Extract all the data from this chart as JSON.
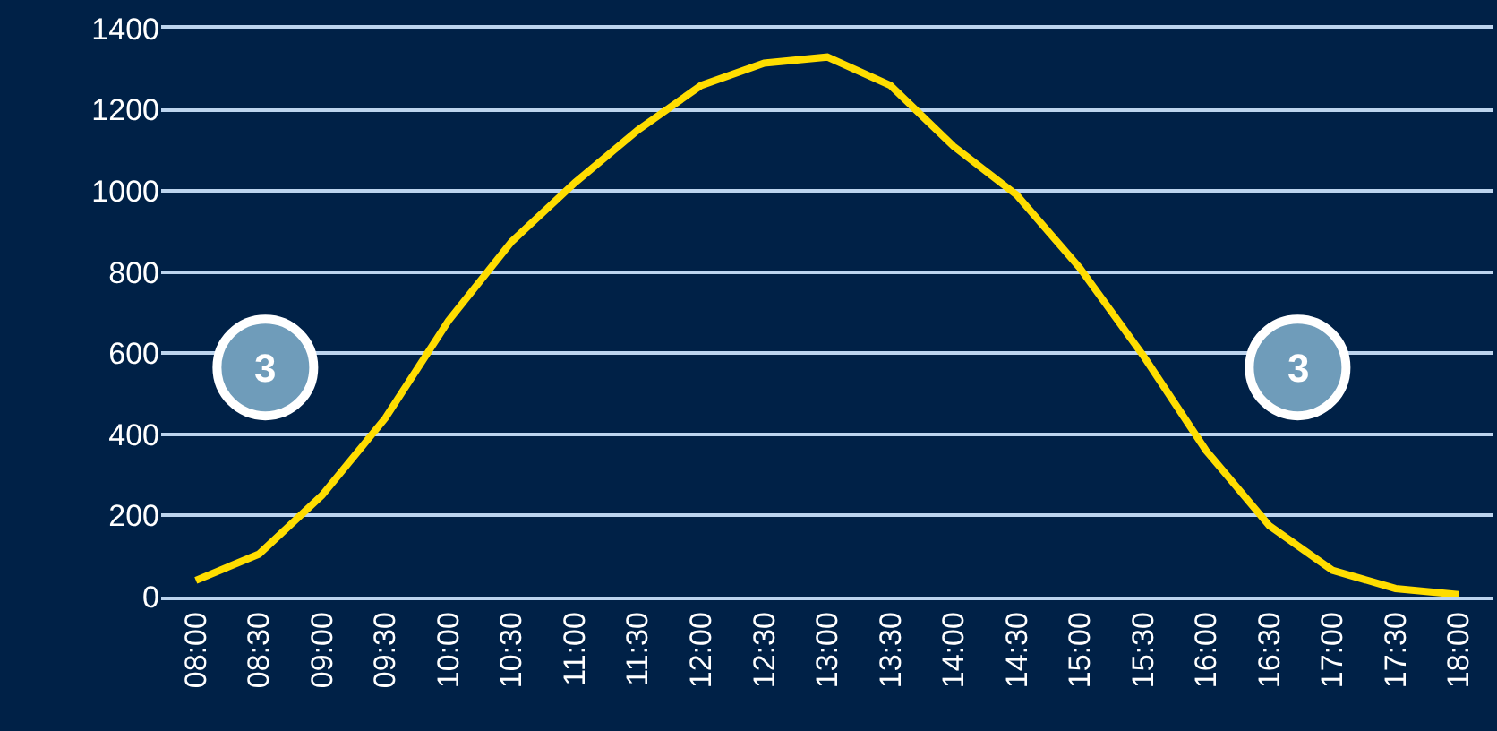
{
  "chart_data": {
    "type": "line",
    "categories": [
      "08:00",
      "08:30",
      "09:00",
      "09:30",
      "10:00",
      "10:30",
      "11:00",
      "11:30",
      "12:00",
      "12:30",
      "13:00",
      "13:30",
      "14:00",
      "14:30",
      "15:00",
      "15:30",
      "16:00",
      "16:30",
      "17:00",
      "17:30",
      "18:00"
    ],
    "series": [
      {
        "color": "#ffdd00",
        "values": [
          40,
          105,
          250,
          440,
          680,
          875,
          1020,
          1150,
          1260,
          1315,
          1330,
          1260,
          1110,
          990,
          810,
          595,
          360,
          175,
          65,
          20,
          5
        ]
      }
    ],
    "ylim": [
      0,
      1400
    ],
    "yticks": [
      0,
      200,
      400,
      600,
      800,
      1000,
      1200,
      1400
    ],
    "grid": "y",
    "marker": "none",
    "line_style": "solid",
    "annotations": [
      "3",
      "3"
    ]
  }
}
